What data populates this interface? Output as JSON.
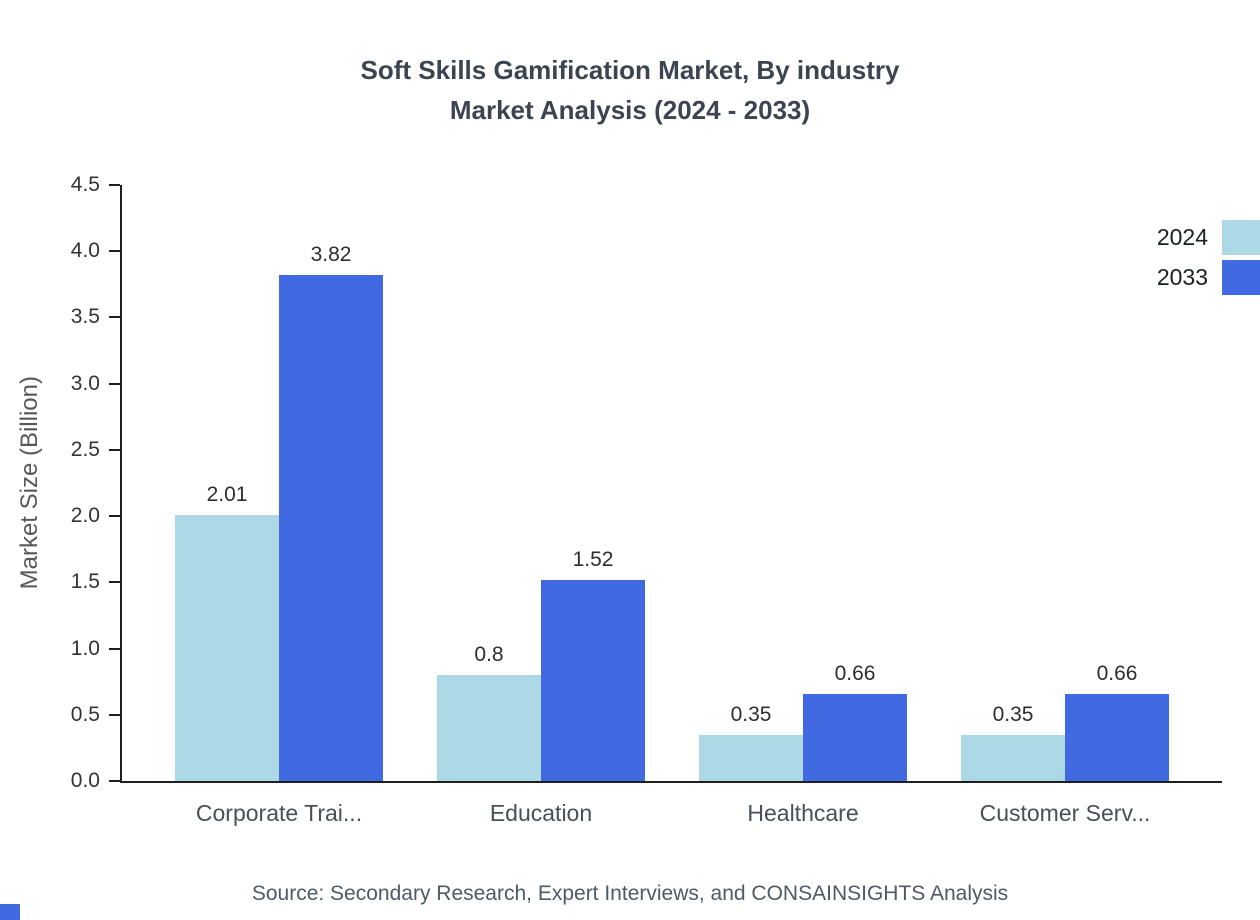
{
  "chart": {
    "title_line1": "Soft Skills Gamification Market, By industry",
    "title_line2": "Market Analysis (2024 - 2033)",
    "ylabel": "Market Size (Billion)",
    "source": "Source: Secondary Research, Expert Interviews, and CONSAINSIGHTS Analysis",
    "corner_mark_color": "#4169E1"
  },
  "chart_data": {
    "type": "bar",
    "title": "Soft Skills Gamification Market, By industry Market Analysis (2024 - 2033)",
    "categories": [
      "Corporate Trai...",
      "Education",
      "Healthcare",
      "Customer Serv..."
    ],
    "series": [
      {
        "name": "2024",
        "color": "#ADD8E6",
        "values": [
          2.01,
          0.8,
          0.35,
          0.35
        ]
      },
      {
        "name": "2033",
        "color": "#4169E1",
        "values": [
          3.82,
          1.52,
          0.66,
          0.66
        ]
      }
    ],
    "xlabel": "",
    "ylabel": "Market Size (Billion)",
    "ylim": [
      0,
      4.5
    ],
    "yticks": [
      "0.0",
      "0.5",
      "1.0",
      "1.5",
      "2.0",
      "2.5",
      "3.0",
      "3.5",
      "4.0",
      "4.5"
    ],
    "legend_position": "top-right",
    "grid": false
  }
}
